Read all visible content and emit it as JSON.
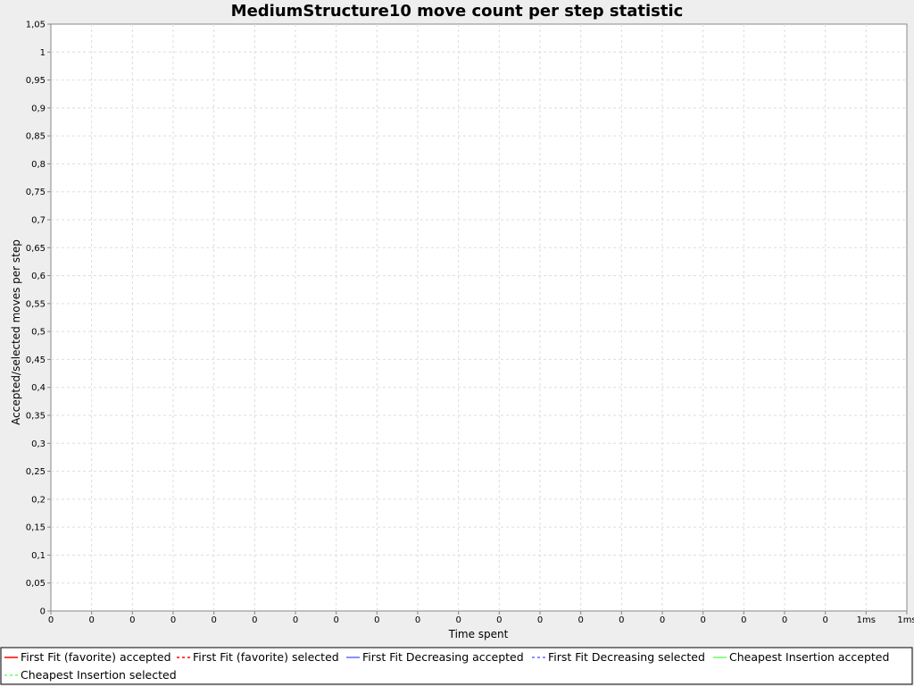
{
  "chart_data": {
    "type": "line",
    "title": "MediumStructure10 move count per step statistic",
    "xlabel": "Time spent",
    "ylabel": "Accepted/selected moves per step",
    "ylim": [
      0,
      1.05
    ],
    "y_ticks": [
      "0",
      "0,05",
      "0,1",
      "0,15",
      "0,2",
      "0,25",
      "0,3",
      "0,35",
      "0,4",
      "0,45",
      "0,5",
      "0,55",
      "0,6",
      "0,65",
      "0,7",
      "0,75",
      "0,8",
      "0,85",
      "0,9",
      "0,95",
      "1",
      "1,05"
    ],
    "x_ticks": [
      "0",
      "0",
      "0",
      "0",
      "0",
      "0",
      "0",
      "0",
      "0",
      "0",
      "0",
      "0",
      "0",
      "0",
      "0",
      "0",
      "0",
      "0",
      "0",
      "0",
      "1ms",
      "1ms"
    ],
    "grid": true,
    "legend_position": "bottom",
    "series": [
      {
        "name": "First Fit (favorite) accepted",
        "color": "#ff0000",
        "dash": "solid",
        "x": [],
        "y": []
      },
      {
        "name": "First Fit (favorite) selected",
        "color": "#ff0000",
        "dash": "dashed",
        "x": [],
        "y": []
      },
      {
        "name": "First Fit Decreasing accepted",
        "color": "#6666ff",
        "dash": "solid",
        "x": [],
        "y": []
      },
      {
        "name": "First Fit Decreasing selected",
        "color": "#6666ff",
        "dash": "dashed",
        "x": [],
        "y": []
      },
      {
        "name": "Cheapest Insertion accepted",
        "color": "#66ff66",
        "dash": "solid",
        "x": [],
        "y": []
      },
      {
        "name": "Cheapest Insertion selected",
        "color": "#66ff66",
        "dash": "dashed",
        "x": [],
        "y": []
      }
    ]
  }
}
